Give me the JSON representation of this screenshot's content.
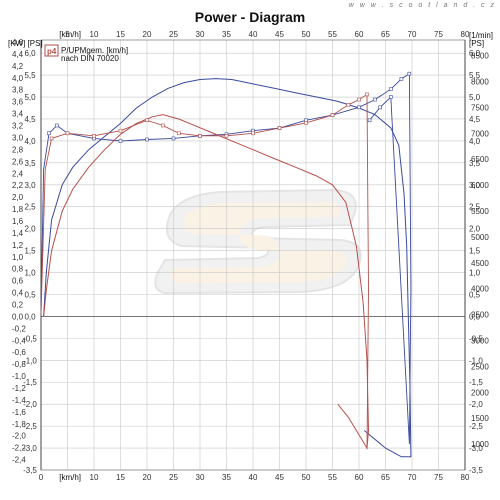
{
  "header": {
    "title": "Power - Diagram",
    "watermark": "w w w . s c o o t l a n d . c z"
  },
  "legend": {
    "badge": "p4",
    "line1": "P/UPMgem. [km/h]",
    "line2": "nach DIN 70020"
  },
  "logo": {
    "description": "S logo watermark"
  },
  "colors": {
    "blue": "#3a4a9c",
    "red": "#b5504a",
    "grid": "#c8c8c8"
  },
  "chart_data": {
    "type": "line",
    "title": "Power - Diagram",
    "xlabel": "[km/h]",
    "ylabel_left": "[KW] [PS]",
    "ylabel_right": "[PS]",
    "ylabel_rpm": "[1/min]",
    "xlim": [
      0,
      80
    ],
    "x_ticks": [
      0,
      5,
      10,
      15,
      20,
      25,
      30,
      35,
      40,
      45,
      50,
      55,
      60,
      65,
      70,
      75,
      80
    ],
    "x_unit_label": "[km/h]",
    "kw_ticks": [
      "4,6",
      "4,4",
      "4,2",
      "4,0",
      "3,8",
      "3,6",
      "3,4",
      "3,2",
      "3,0",
      "2,8",
      "2,6",
      "2,4",
      "2,2",
      "2,0",
      "1,8",
      "1,6",
      "1,4",
      "1,2",
      "1,0",
      "0,8",
      "0,6",
      "0,4",
      "0,2",
      "0,0",
      "-0,2",
      "-0,4",
      "-0,6",
      "-0,8",
      "-1,0",
      "-1,2",
      "-1,4",
      "-1,6",
      "-1,8",
      "-2,0",
      "-2,2",
      "-2,4"
    ],
    "ps_ticks": [
      "6,0",
      "5,5",
      "5,0",
      "4,5",
      "4,0",
      "3,5",
      "3,0",
      "2,5",
      "2,0",
      "1,5",
      "1,0",
      "0,5",
      "0,0",
      "-0,5",
      "-1,0",
      "-1,5",
      "-2,0",
      "-2,5",
      "-3,0",
      "-3,5"
    ],
    "rpm_ticks": [
      "8500",
      "8000",
      "7500",
      "7000",
      "6500",
      "6000",
      "5500",
      "5000",
      "4500",
      "4000",
      "3500",
      "3000",
      "2500",
      "2000",
      "1500",
      "1000"
    ],
    "ps_range": [
      -3.5,
      6.3
    ],
    "rpm_range": [
      500,
      8800
    ],
    "series": [
      {
        "color": "#3a4a9c",
        "power_ps": [
          [
            0.5,
            0.0
          ],
          [
            1,
            1.0
          ],
          [
            2,
            2.2
          ],
          [
            4,
            3.0
          ],
          [
            6,
            3.4
          ],
          [
            9,
            3.8
          ],
          [
            12,
            4.1
          ],
          [
            15,
            4.4
          ],
          [
            18,
            4.75
          ],
          [
            21,
            5.0
          ],
          [
            24,
            5.2
          ],
          [
            27,
            5.33
          ],
          [
            30,
            5.4
          ],
          [
            33,
            5.42
          ],
          [
            36,
            5.4
          ],
          [
            40,
            5.3
          ],
          [
            44,
            5.2
          ],
          [
            48,
            5.1
          ],
          [
            52,
            5.0
          ],
          [
            56,
            4.9
          ],
          [
            60,
            4.75
          ],
          [
            63,
            4.6
          ],
          [
            66,
            4.3
          ],
          [
            67.5,
            3.9
          ],
          [
            68.5,
            2.8
          ],
          [
            69,
            1.6
          ],
          [
            69.3,
            0.0
          ],
          [
            69.6,
            -1.5
          ],
          [
            69.8,
            -3.2
          ],
          [
            68,
            -3.2
          ],
          [
            65,
            -3.0
          ],
          [
            62,
            -2.7
          ],
          [
            61,
            -2.6
          ]
        ],
        "rpm": [
          [
            0,
            3500
          ],
          [
            0.5,
            6300
          ],
          [
            1.5,
            7000
          ],
          [
            3,
            7150
          ],
          [
            5,
            7000
          ],
          [
            10,
            6900
          ],
          [
            15,
            6850
          ],
          [
            20,
            6880
          ],
          [
            25,
            6900
          ],
          [
            30,
            6950
          ],
          [
            35,
            6980
          ],
          [
            40,
            7050
          ],
          [
            45,
            7100
          ],
          [
            50,
            7250
          ],
          [
            55,
            7350
          ],
          [
            60,
            7500
          ],
          [
            63,
            7650
          ],
          [
            66,
            7850
          ],
          [
            68,
            8050
          ],
          [
            69.5,
            8150
          ],
          [
            69.8,
            4000
          ],
          [
            69.5,
            1000
          ],
          [
            66,
            7700
          ],
          [
            64,
            7500
          ],
          [
            62,
            7250
          ]
        ]
      },
      {
        "color": "#b5504a",
        "power_ps": [
          [
            0.5,
            0.0
          ],
          [
            1,
            0.6
          ],
          [
            2,
            1.5
          ],
          [
            4,
            2.4
          ],
          [
            6,
            2.9
          ],
          [
            9,
            3.4
          ],
          [
            12,
            3.8
          ],
          [
            15,
            4.15
          ],
          [
            18,
            4.4
          ],
          [
            21,
            4.55
          ],
          [
            23,
            4.6
          ],
          [
            26,
            4.5
          ],
          [
            29,
            4.35
          ],
          [
            32,
            4.2
          ],
          [
            36,
            4.0
          ],
          [
            40,
            3.8
          ],
          [
            44,
            3.6
          ],
          [
            48,
            3.4
          ],
          [
            52,
            3.2
          ],
          [
            55,
            3.0
          ],
          [
            57.5,
            2.6
          ],
          [
            59.5,
            1.6
          ],
          [
            60.8,
            0.3
          ],
          [
            61.5,
            -1.0
          ],
          [
            61.8,
            -2.6
          ],
          [
            61.5,
            -3.0
          ],
          [
            60,
            -2.7
          ],
          [
            58,
            -2.3
          ],
          [
            56,
            -2.0
          ]
        ],
        "rpm": [
          [
            0,
            3500
          ],
          [
            0.8,
            6300
          ],
          [
            2,
            6900
          ],
          [
            5,
            7000
          ],
          [
            10,
            6950
          ],
          [
            15,
            7050
          ],
          [
            20,
            7250
          ],
          [
            23,
            7150
          ],
          [
            26,
            7000
          ],
          [
            30,
            6950
          ],
          [
            35,
            6950
          ],
          [
            40,
            7000
          ],
          [
            45,
            7100
          ],
          [
            50,
            7200
          ],
          [
            55,
            7350
          ],
          [
            58,
            7550
          ],
          [
            60,
            7650
          ],
          [
            61.5,
            7750
          ],
          [
            61.8,
            4000
          ],
          [
            61.5,
            900
          ]
        ]
      }
    ]
  }
}
